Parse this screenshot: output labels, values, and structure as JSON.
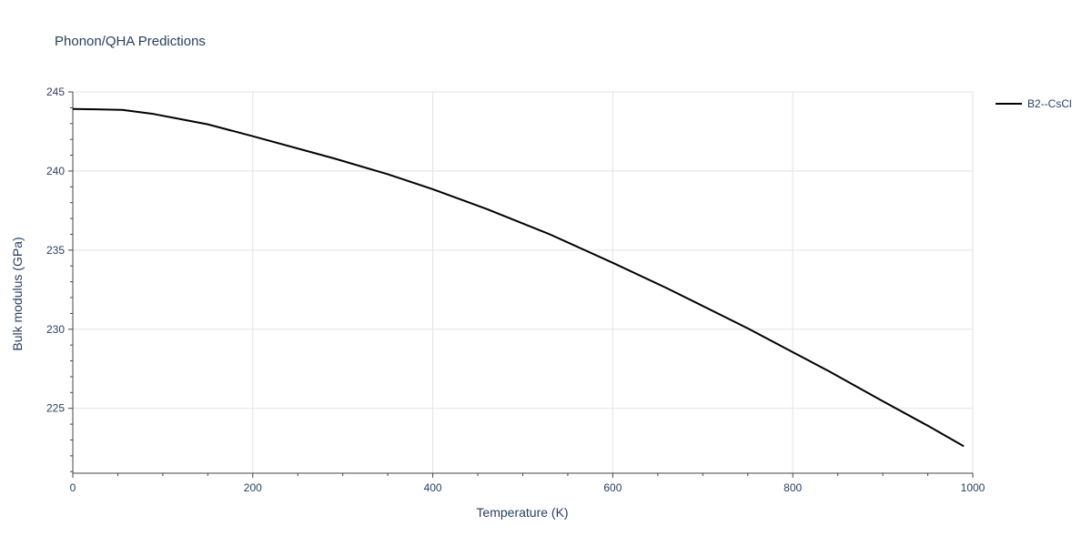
{
  "chart_data": {
    "type": "line",
    "title": "Phonon/QHA Predictions",
    "xlabel": "Temperature (K)",
    "ylabel": "Bulk modulus (GPa)",
    "xlim": [
      0,
      1000
    ],
    "ylim": [
      220.9,
      245
    ],
    "x_ticks": [
      0,
      200,
      400,
      600,
      800,
      1000
    ],
    "x_tick_labels": [
      "0",
      "200",
      "400",
      "600",
      "800",
      "1000"
    ],
    "y_ticks": [
      225,
      230,
      235,
      240,
      245
    ],
    "y_tick_labels": [
      "225",
      "230",
      "235",
      "240",
      "245"
    ],
    "grid": true,
    "legend_position": "top-right",
    "series": [
      {
        "name": "B2--CsCl",
        "color": "#000000",
        "x": [
          0,
          25,
          55,
          90,
          150,
          200,
          290,
          350,
          400,
          460,
          530,
          600,
          660,
          750,
          800,
          840,
          900,
          950,
          990
        ],
        "y": [
          243.92,
          243.9,
          243.86,
          243.6,
          242.95,
          242.2,
          240.8,
          239.8,
          238.85,
          237.6,
          236.0,
          234.2,
          232.6,
          230.05,
          228.55,
          227.35,
          225.45,
          223.9,
          222.6
        ]
      }
    ]
  }
}
